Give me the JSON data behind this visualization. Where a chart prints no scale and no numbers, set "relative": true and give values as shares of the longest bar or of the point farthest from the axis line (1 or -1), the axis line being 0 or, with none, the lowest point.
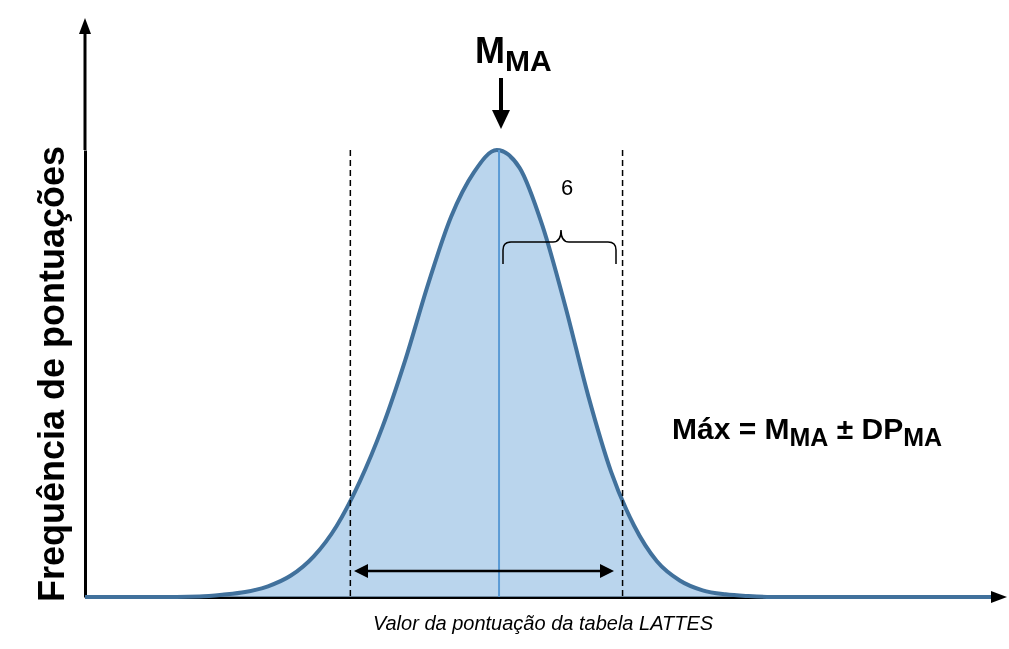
{
  "chart_data": {
    "type": "area",
    "relative": true,
    "xlabel": "Valor da pontuação da tabela LATTES",
    "ylabel": "Frequência de pontuações",
    "categories": [
      null,
      null,
      null,
      null,
      null,
      null,
      null,
      null,
      null,
      null,
      null,
      null,
      null,
      null,
      null,
      null,
      null,
      null,
      null,
      null,
      null,
      null,
      null,
      null,
      null,
      null,
      null,
      null,
      null,
      null,
      null,
      null,
      null,
      null,
      null,
      null,
      null,
      null,
      null,
      null,
      null
    ],
    "series": [
      {
        "color": "#9dc3e6",
        "values": [
          0,
          0,
          0,
          0,
          0,
          0.001,
          0.005,
          0.011,
          0.024,
          0.048,
          0.091,
          0.159,
          0.257,
          0.38,
          0.53,
          0.7,
          0.85,
          0.95,
          1,
          0.96,
          0.83,
          0.65,
          0.45,
          0.28,
          0.16,
          0.08,
          0.037,
          0.015,
          0.006,
          0.002,
          0,
          0,
          0,
          0,
          0,
          0,
          0,
          0,
          0,
          0,
          0
        ]
      }
    ],
    "annotations": [
      "M$_{MA}$",
      "6",
      "Máx =  M$_{MA}$ ± DP$_{MA}$"
    ],
    "grid": false
  }
}
